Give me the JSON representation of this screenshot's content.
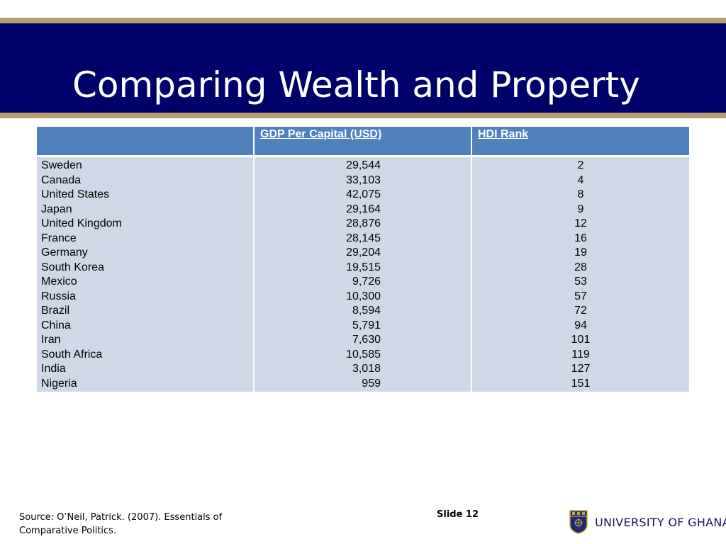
{
  "slide": {
    "title": "Comparing Wealth and Property",
    "slide_number": "Slide 12",
    "source_line1": "Source: O’Neil, Patrick. (2007). Essentials of",
    "source_line2": "Comparative Politics.",
    "institution": "UNIVERSITY OF GHANA",
    "colors": {
      "title_band": "#00006a",
      "gold_rule": "#b59c72",
      "header_fill": "#4f81bd",
      "body_fill": "#d0d8e8"
    }
  },
  "table": {
    "headers": [
      "",
      "GDP Per Capital (USD)",
      "HDI Rank"
    ],
    "rows": [
      {
        "country": "Sweden",
        "gdp": "29,544",
        "hdi": "2"
      },
      {
        "country": "Canada",
        "gdp": "33,103",
        "hdi": "4"
      },
      {
        "country": "United States",
        "gdp": "42,075",
        "hdi": "8"
      },
      {
        "country": "Japan",
        "gdp": "29,164",
        "hdi": "9"
      },
      {
        "country": "United Kingdom",
        "gdp": "28,876",
        "hdi": "12"
      },
      {
        "country": "France",
        "gdp": "28,145",
        "hdi": "16"
      },
      {
        "country": "Germany",
        "gdp": "29,204",
        "hdi": "19"
      },
      {
        "country": "South Korea",
        "gdp": "19,515",
        "hdi": "28"
      },
      {
        "country": "Mexico",
        "gdp": "9,726",
        "hdi": "53"
      },
      {
        "country": "Russia",
        "gdp": "10,300",
        "hdi": "57"
      },
      {
        "country": "Brazil",
        "gdp": "8,594",
        "hdi": "72"
      },
      {
        "country": "China",
        "gdp": "5,791",
        "hdi": "94"
      },
      {
        "country": "Iran",
        "gdp": "7,630",
        "hdi": "101"
      },
      {
        "country": "South Africa",
        "gdp": "10,585",
        "hdi": "119"
      },
      {
        "country": "India",
        "gdp": "3,018",
        "hdi": "127"
      },
      {
        "country": "Nigeria",
        "gdp": "959",
        "hdi": "151"
      }
    ]
  },
  "logo": {
    "icon": "university-crest-icon"
  }
}
